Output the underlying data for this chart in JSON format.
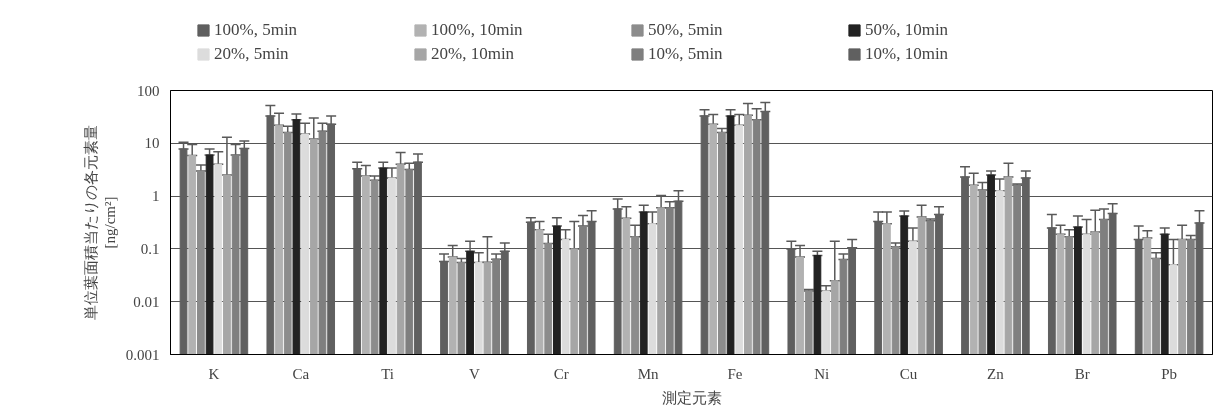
{
  "chart_data": {
    "type": "bar",
    "xlabel": "測定元素",
    "ylabel": "単位葉面積当たりの各元素量\n[ng/cm²]",
    "categories": [
      "K",
      "Ca",
      "Ti",
      "V",
      "Cr",
      "Mn",
      "Fe",
      "Ni",
      "Cu",
      "Zn",
      "Br",
      "Pb"
    ],
    "log": "y",
    "ylim": [
      0.001,
      100
    ],
    "yticks": [
      0.001,
      0.01,
      0.1,
      1,
      10,
      100
    ],
    "grid": "y",
    "legend": "top",
    "series": [
      {
        "name": "100%, 5min",
        "color": "#5f5f5f",
        "values": [
          7.8,
          33,
          3.3,
          0.058,
          0.32,
          0.57,
          33,
          0.1,
          0.33,
          2.3,
          0.25,
          0.15
        ],
        "errors": [
          [
            7.8,
            10.5
          ],
          [
            33,
            52
          ],
          [
            3.3,
            4.4
          ],
          [
            0.058,
            0.08
          ],
          [
            0.32,
            0.39
          ],
          [
            0.57,
            0.88
          ],
          [
            33,
            43
          ],
          [
            0.1,
            0.14
          ],
          [
            0.33,
            0.5
          ],
          [
            2.3,
            3.6
          ],
          [
            0.25,
            0.45
          ],
          [
            0.15,
            0.27
          ]
        ]
      },
      {
        "name": "100%, 10min",
        "color": "#b2b2b2",
        "values": [
          5.9,
          22,
          2.4,
          0.07,
          0.23,
          0.38,
          23,
          0.07,
          0.3,
          1.6,
          0.19,
          0.16
        ],
        "errors": [
          [
            5.9,
            9.5
          ],
          [
            22,
            37
          ],
          [
            2.4,
            3.8
          ],
          [
            0.07,
            0.116
          ],
          [
            0.23,
            0.33
          ],
          [
            0.38,
            0.63
          ],
          [
            23,
            35
          ],
          [
            0.07,
            0.116
          ],
          [
            0.3,
            0.5
          ],
          [
            1.6,
            2.7
          ],
          [
            0.19,
            0.28
          ],
          [
            0.16,
            0.22
          ]
        ]
      },
      {
        "name": "50%, 5min",
        "color": "#8c8c8c",
        "values": [
          3.0,
          16,
          2.0,
          0.055,
          0.126,
          0.17,
          16,
          0.016,
          0.11,
          1.3,
          0.17,
          0.066
        ],
        "errors": [
          [
            3.0,
            3.9
          ],
          [
            16,
            21
          ],
          [
            2.0,
            2.4
          ],
          [
            0.055,
            0.066
          ],
          [
            0.126,
            0.19
          ],
          [
            0.17,
            0.28
          ],
          [
            16,
            19
          ],
          [
            0.016,
            0.017
          ],
          [
            0.11,
            0.13
          ],
          [
            1.3,
            1.8
          ],
          [
            0.17,
            0.23
          ],
          [
            0.066,
            0.085
          ]
        ]
      },
      {
        "name": "50%, 10min",
        "color": "#222222",
        "values": [
          6.0,
          28,
          3.4,
          0.09,
          0.27,
          0.5,
          33,
          0.075,
          0.42,
          2.5,
          0.26,
          0.19
        ],
        "errors": [
          [
            6.0,
            7.8
          ],
          [
            28,
            36
          ],
          [
            3.4,
            4.4
          ],
          [
            0.09,
            0.14
          ],
          [
            0.27,
            0.39
          ],
          [
            0.5,
            0.67
          ],
          [
            33,
            43
          ],
          [
            0.075,
            0.09
          ],
          [
            0.42,
            0.52
          ],
          [
            2.5,
            3.0
          ],
          [
            0.26,
            0.42
          ],
          [
            0.19,
            0.25
          ]
        ]
      },
      {
        "name": "20%, 5min",
        "color": "#dcdcdc",
        "values": [
          4.0,
          15,
          2.2,
          0.055,
          0.15,
          0.3,
          22,
          0.016,
          0.14,
          1.26,
          0.19,
          0.05
        ],
        "errors": [
          [
            4.0,
            6.9
          ],
          [
            15,
            24
          ],
          [
            2.2,
            3.4
          ],
          [
            0.055,
            0.085
          ],
          [
            0.15,
            0.23
          ],
          [
            0.3,
            0.5
          ],
          [
            22,
            35
          ],
          [
            0.016,
            0.02
          ],
          [
            0.14,
            0.25
          ],
          [
            1.26,
            2.1
          ],
          [
            0.19,
            0.36
          ],
          [
            0.05,
            0.15
          ]
        ]
      },
      {
        "name": "20%, 10min",
        "color": "#a6a6a6",
        "values": [
          2.5,
          12,
          4.0,
          0.056,
          0.1,
          0.6,
          34,
          0.025,
          0.4,
          2.3,
          0.21,
          0.15
        ],
        "errors": [
          [
            2.5,
            13
          ],
          [
            12,
            30
          ],
          [
            4.0,
            6.7
          ],
          [
            0.056,
            0.17
          ],
          [
            0.1,
            0.33
          ],
          [
            0.6,
            1.03
          ],
          [
            34,
            57
          ],
          [
            0.025,
            0.14
          ],
          [
            0.4,
            0.67
          ],
          [
            2.3,
            4.2
          ],
          [
            0.21,
            0.54
          ],
          [
            0.15,
            0.28
          ]
        ]
      },
      {
        "name": "10%, 5min",
        "color": "#7f7f7f",
        "values": [
          6.0,
          17,
          3.2,
          0.064,
          0.27,
          0.6,
          28,
          0.063,
          0.34,
          1.6,
          0.36,
          0.15
        ],
        "errors": [
          [
            6.0,
            9.5
          ],
          [
            17,
            24
          ],
          [
            3.2,
            4.2
          ],
          [
            0.064,
            0.08
          ],
          [
            0.27,
            0.43
          ],
          [
            0.6,
            0.78
          ],
          [
            28,
            45
          ],
          [
            0.063,
            0.08
          ],
          [
            0.34,
            0.37
          ],
          [
            1.6,
            1.7
          ],
          [
            0.36,
            0.57
          ],
          [
            0.15,
            0.18
          ]
        ]
      },
      {
        "name": "10%, 10min",
        "color": "#606060",
        "values": [
          8.0,
          23,
          4.4,
          0.09,
          0.33,
          0.8,
          40,
          0.105,
          0.45,
          2.2,
          0.47,
          0.31
        ],
        "errors": [
          [
            8.0,
            11
          ],
          [
            23,
            33
          ],
          [
            4.4,
            6.3
          ],
          [
            0.09,
            0.13
          ],
          [
            0.33,
            0.53
          ],
          [
            0.8,
            1.26
          ],
          [
            40,
            59
          ],
          [
            0.105,
            0.15
          ],
          [
            0.45,
            0.63
          ],
          [
            2.2,
            3.0
          ],
          [
            0.47,
            0.72
          ],
          [
            0.31,
            0.53
          ]
        ]
      }
    ]
  }
}
